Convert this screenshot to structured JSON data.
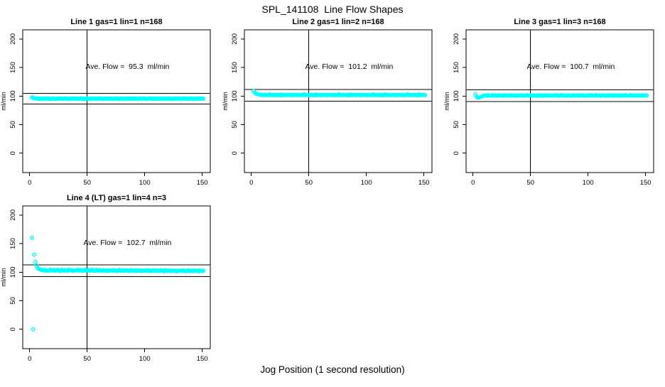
{
  "figure": {
    "title": "SPL_141108  Line Flow Shapes",
    "xlabel": "Jog Position (1 second resolution)"
  },
  "colors": {
    "point": "#00ffff",
    "axis": "#000000",
    "background": "#ffffff"
  },
  "chart_data": [
    {
      "type": "scatter",
      "grid": [
        0,
        0
      ],
      "title": "Line 1 gas=1 lin=1 n=168",
      "annotation": "Ave. Flow =  95.3  ml/min",
      "ave_flow_ml_min": 95.3,
      "n": 168,
      "ylabel": "ml/min",
      "xticks": [
        0,
        50,
        100,
        150
      ],
      "yticks": [
        0,
        50,
        100,
        150,
        200
      ],
      "x_range": [
        -6,
        157
      ],
      "y_range": [
        -34,
        216
      ],
      "vline_x": 50,
      "hlines": [
        104.8,
        85.8
      ],
      "annotation_pos": [
        85,
        152
      ],
      "x0": 2,
      "dx": 1,
      "y_values": [
        97.6,
        96.9,
        96.3,
        95.9,
        95.7,
        95.3,
        95.6,
        95.1,
        95.7,
        95.4,
        95.0,
        95.5,
        95.8,
        95.2,
        95.3,
        95.6,
        94.9,
        95.4,
        95.7,
        95.1,
        95.5,
        94.8,
        95.6,
        95.3,
        95.1,
        95.7,
        95.4,
        95.0,
        95.8,
        95.5,
        95.2,
        95.6,
        94.9,
        95.3,
        95.5,
        95.3,
        95.6,
        95.1,
        95.7,
        95.4,
        95.0,
        95.5,
        95.8,
        95.2,
        95.3,
        95.6,
        94.9,
        95.4,
        95.7,
        95.1,
        95.5,
        94.8,
        95.6,
        95.3,
        95.1,
        95.7,
        95.4,
        95.0,
        95.8,
        95.5,
        95.2,
        95.6,
        94.9,
        95.3,
        95.5,
        95.3,
        95.6,
        95.1,
        95.7,
        95.4,
        95.0,
        95.5,
        95.8,
        95.2,
        95.3,
        95.6,
        94.9,
        95.4,
        95.7,
        95.1,
        95.5,
        94.8,
        95.6,
        95.3,
        95.1,
        95.7,
        95.4,
        95.0,
        95.8,
        95.5,
        95.2,
        95.6,
        94.9,
        95.3,
        95.5,
        95.3,
        95.6,
        95.1,
        95.7,
        95.4,
        95.0,
        95.5,
        95.8,
        95.2,
        95.3,
        95.6,
        94.9,
        95.4,
        95.7,
        95.1,
        95.5,
        94.8,
        95.6,
        95.3,
        95.1,
        95.7,
        95.4,
        95.0,
        95.8,
        95.5,
        95.2,
        95.6,
        94.9,
        95.3,
        95.5,
        95.3,
        95.6,
        95.1,
        95.7,
        95.4,
        95.0,
        95.5,
        95.8,
        95.2,
        95.3,
        95.6,
        94.9,
        95.4,
        95.7,
        95.1,
        95.5,
        94.8,
        95.6,
        95.3,
        95.1,
        95.7,
        95.4,
        95.0,
        95.8,
        95.5
      ]
    },
    {
      "type": "scatter",
      "grid": [
        0,
        1
      ],
      "title": "Line 2 gas=1 lin=2 n=168",
      "annotation": "Ave. Flow =  101.2  ml/min",
      "ave_flow_ml_min": 101.2,
      "n": 168,
      "ylabel": "ml/min",
      "xticks": [
        0,
        50,
        100,
        150
      ],
      "yticks": [
        0,
        50,
        100,
        150,
        200
      ],
      "x_range": [
        -6,
        157
      ],
      "y_range": [
        -34,
        216
      ],
      "vline_x": 50,
      "hlines": [
        111.3,
        91.1
      ],
      "annotation_pos": [
        85,
        152
      ],
      "x0": 2,
      "dx": 1,
      "y_values": [
        108.6,
        106.2,
        104.6,
        103.6,
        103.0,
        102.6,
        102.4,
        101.8,
        102.1,
        101.6,
        102.3,
        101.9,
        101.5,
        102.0,
        103.1,
        101.7,
        101.8,
        102.1,
        101.4,
        101.9,
        102.2,
        101.6,
        102.0,
        101.3,
        102.9,
        101.8,
        101.6,
        102.2,
        101.9,
        101.5,
        102.3,
        102.0,
        101.7,
        102.1,
        101.4,
        101.8,
        102.0,
        101.8,
        102.1,
        101.6,
        102.3,
        101.9,
        101.5,
        102.0,
        103.1,
        101.7,
        101.8,
        102.1,
        101.4,
        101.9,
        102.2,
        101.6,
        102.0,
        101.3,
        102.9,
        101.8,
        101.6,
        102.2,
        101.9,
        101.5,
        102.3,
        102.0,
        101.7,
        102.1,
        101.4,
        101.8,
        102.0,
        101.8,
        102.1,
        101.6,
        102.3,
        101.9,
        101.5,
        102.0,
        103.1,
        101.7,
        101.8,
        102.1,
        101.4,
        101.9,
        102.2,
        101.6,
        102.0,
        101.3,
        102.9,
        101.8,
        101.6,
        102.2,
        101.9,
        101.5,
        102.3,
        102.0,
        101.7,
        102.1,
        101.4,
        101.8,
        102.0,
        101.8,
        102.1,
        101.6,
        102.3,
        101.9,
        101.5,
        102.0,
        103.1,
        101.7,
        101.8,
        102.1,
        101.4,
        101.9,
        102.2,
        101.6,
        102.0,
        101.3,
        102.9,
        101.8,
        101.6,
        102.2,
        101.9,
        101.5,
        102.3,
        102.0,
        101.7,
        102.1,
        101.4,
        101.8,
        102.0,
        101.8,
        102.1,
        101.6,
        102.3,
        101.9,
        101.5,
        102.0,
        103.1,
        101.7,
        101.8,
        102.1,
        101.4,
        101.9,
        102.2,
        101.6,
        102.0,
        101.3,
        102.9,
        101.8,
        101.6,
        102.2,
        101.9,
        101.5
      ]
    },
    {
      "type": "scatter",
      "grid": [
        0,
        2
      ],
      "title": "Line 3 gas=1 lin=3 n=168",
      "annotation": "Ave. Flow =  100.7  ml/min",
      "ave_flow_ml_min": 100.7,
      "n": 168,
      "ylabel": "ml/min",
      "xticks": [
        0,
        50,
        100,
        150
      ],
      "yticks": [
        0,
        50,
        100,
        150,
        200
      ],
      "x_range": [
        -6,
        157
      ],
      "y_range": [
        -34,
        216
      ],
      "vline_x": 50,
      "hlines": [
        110.8,
        90.6
      ],
      "annotation_pos": [
        85,
        152
      ],
      "x0": 2,
      "dx": 1,
      "y_values": [
        103.6,
        99.2,
        97.6,
        97.1,
        97.6,
        98.6,
        99.6,
        100.3,
        100.9,
        101.2,
        100.7,
        101.4,
        101.0,
        100.6,
        101.1,
        101.7,
        100.8,
        100.9,
        101.2,
        100.5,
        101.0,
        101.3,
        100.7,
        101.1,
        100.4,
        101.5,
        100.9,
        100.7,
        101.3,
        101.0,
        100.6,
        101.4,
        101.1,
        100.8,
        101.2,
        100.5,
        100.9,
        101.1,
        100.9,
        101.2,
        100.7,
        101.4,
        101.0,
        100.6,
        101.1,
        101.7,
        100.8,
        100.9,
        101.2,
        100.5,
        101.0,
        101.3,
        100.7,
        101.1,
        100.4,
        101.5,
        100.9,
        100.7,
        101.3,
        101.0,
        100.6,
        101.4,
        101.1,
        100.8,
        101.2,
        100.5,
        100.9,
        101.1,
        100.9,
        101.2,
        100.7,
        101.4,
        101.0,
        100.6,
        101.1,
        101.7,
        100.8,
        100.9,
        101.2,
        100.5,
        101.0,
        101.3,
        100.7,
        101.1,
        100.4,
        101.5,
        100.9,
        100.7,
        101.3,
        101.0,
        100.6,
        101.4,
        101.1,
        100.8,
        101.2,
        100.5,
        100.9,
        101.1,
        100.9,
        101.2,
        100.7,
        101.4,
        101.0,
        100.6,
        101.1,
        101.7,
        100.8,
        100.9,
        101.2,
        100.5,
        101.0,
        101.3,
        100.7,
        101.1,
        100.4,
        101.5,
        100.9,
        100.7,
        101.3,
        101.0,
        100.6,
        101.4,
        101.1,
        100.8,
        101.2,
        100.5,
        100.9,
        101.1,
        100.9,
        101.2,
        100.7,
        101.4,
        101.0,
        100.6,
        101.1,
        101.7,
        100.8,
        100.9,
        101.2,
        100.5,
        101.0,
        101.3,
        100.7,
        101.1,
        100.4,
        101.5,
        100.9,
        100.7,
        101.3,
        101.0
      ]
    },
    {
      "type": "scatter",
      "grid": [
        1,
        0
      ],
      "title": "Line 4 (LT) gas=1 lin=4 n=3",
      "annotation": "Ave. Flow =  102.7  ml/min",
      "ave_flow_ml_min": 102.7,
      "n": 3,
      "ylabel": "ml/min",
      "xticks": [
        0,
        50,
        100,
        150
      ],
      "yticks": [
        0,
        50,
        100,
        150,
        200
      ],
      "x_range": [
        -6,
        157
      ],
      "y_range": [
        -34,
        216
      ],
      "vline_x": 50,
      "hlines": [
        113.0,
        92.4
      ],
      "annotation_pos": [
        85,
        152
      ],
      "x0": 2,
      "dx": 1,
      "y_values": [
        160.0,
        0.0,
        130.5,
        118.0,
        111.5,
        107.5,
        105.8,
        104.8,
        104.2,
        103.3,
        104.1,
        102.6,
        103.8,
        103.0,
        102.2,
        103.5,
        104.4,
        102.8,
        103.1,
        103.9,
        102.4,
        103.2,
        104.0,
        102.7,
        103.4,
        102.0,
        104.2,
        103.1,
        102.6,
        103.7,
        103.2,
        102.3,
        104.0,
        103.4,
        102.8,
        103.5,
        102.2,
        103.0,
        103.3,
        103.3,
        104.1,
        102.6,
        103.8,
        103.0,
        102.2,
        103.5,
        104.4,
        102.8,
        103.1,
        103.9,
        102.4,
        103.2,
        104.0,
        102.7,
        103.4,
        102.0,
        104.2,
        103.1,
        102.6,
        103.7,
        102.9,
        102.2,
        103.6,
        103.0,
        102.5,
        103.2,
        102.0,
        102.8,
        103.0,
        103.0,
        103.7,
        102.3,
        103.4,
        102.7,
        102.0,
        103.1,
        104.0,
        102.5,
        102.8,
        103.5,
        102.1,
        102.9,
        103.6,
        102.4,
        103.0,
        101.8,
        103.8,
        102.8,
        102.3,
        103.3,
        102.6,
        102.0,
        103.3,
        102.8,
        102.2,
        103.0,
        101.8,
        102.5,
        102.8,
        102.8,
        103.4,
        102.1,
        103.1,
        102.5,
        101.8,
        102.8,
        103.6,
        102.2,
        102.5,
        103.2,
        101.9,
        102.6,
        103.3,
        102.1,
        102.8,
        101.6,
        103.4,
        102.5,
        102.0,
        103.0,
        102.4,
        101.8,
        103.0,
        102.5,
        102.0,
        102.7,
        101.6,
        102.3,
        102.5,
        102.5,
        103.1,
        101.9,
        102.8,
        102.2,
        101.6,
        102.5,
        103.2,
        102.0,
        102.3,
        102.9,
        101.7,
        102.4,
        103.0,
        101.9,
        102.5,
        101.4,
        103.1,
        102.2,
        101.8,
        102.7
      ]
    }
  ]
}
